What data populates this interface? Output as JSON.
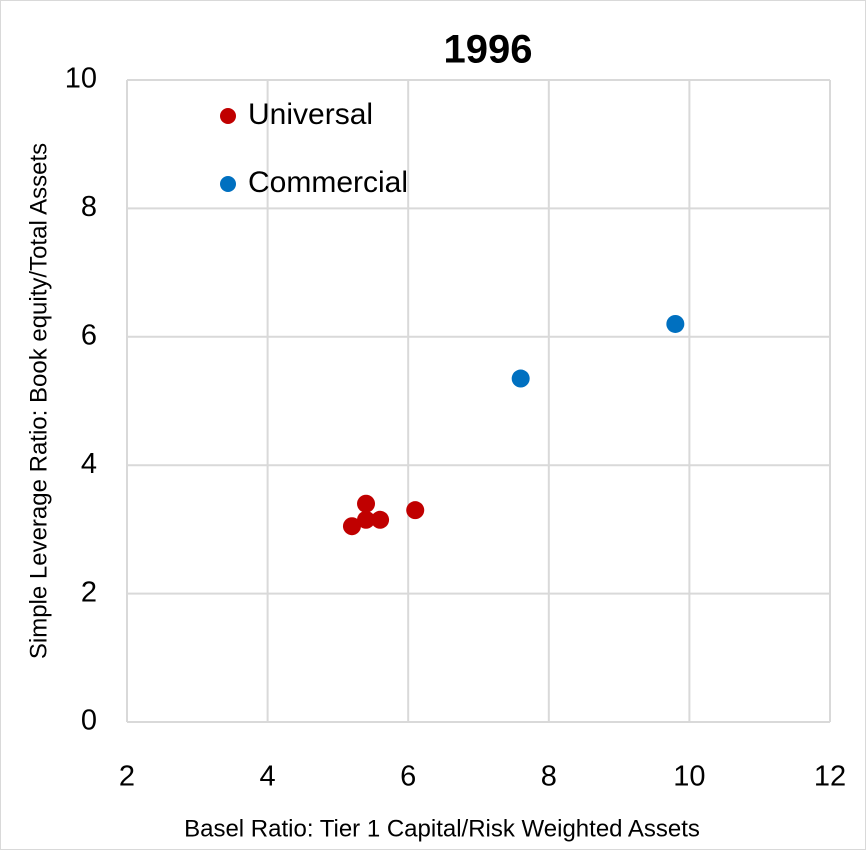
{
  "chart_data": {
    "type": "scatter",
    "title": "1996",
    "x_label": "Basel Ratio: Tier 1 Capital/Risk Weighted Assets",
    "y_label": "Simple Leverage Ratio: Book equity/Total Assets",
    "xlim": [
      2,
      12
    ],
    "xticks": [
      2,
      4,
      6,
      8,
      10,
      12
    ],
    "ylim": [
      0,
      10
    ],
    "yticks": [
      0,
      2,
      4,
      6,
      8,
      10
    ],
    "grid": true,
    "legend": "upper left",
    "series": [
      {
        "name": "Universal",
        "color": "#c00000",
        "x": [
          5.2,
          5.4,
          5.4,
          5.6,
          6.1
        ],
        "values": [
          3.05,
          3.4,
          3.15,
          3.15,
          3.3
        ]
      },
      {
        "name": "Commercial",
        "color": "#0070c0",
        "x": [
          7.6,
          9.8
        ],
        "values": [
          5.35,
          6.2
        ]
      }
    ]
  }
}
